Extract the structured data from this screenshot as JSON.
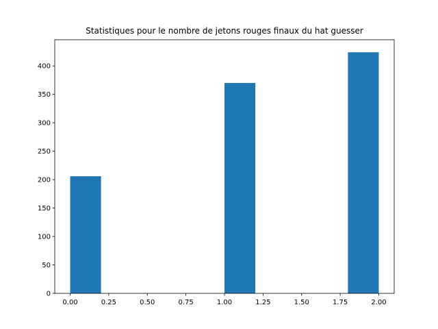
{
  "chart_data": {
    "type": "bar",
    "title": "Statistiques pour le nombre de jetons rouges finaux du hat guesser",
    "xlabel": "",
    "ylabel": "",
    "xlim": [
      -0.1,
      2.1
    ],
    "ylim": [
      0,
      446
    ],
    "x_ticks": [
      0.0,
      0.25,
      0.5,
      0.75,
      1.0,
      1.25,
      1.5,
      1.75,
      2.0
    ],
    "x_tick_labels": [
      "0.00",
      "0.25",
      "0.50",
      "0.75",
      "1.00",
      "1.25",
      "1.50",
      "1.75",
      "2.00"
    ],
    "y_ticks": [
      0,
      50,
      100,
      150,
      200,
      250,
      300,
      350,
      400
    ],
    "y_tick_labels": [
      "0",
      "50",
      "100",
      "150",
      "200",
      "250",
      "300",
      "350",
      "400"
    ],
    "bins": [
      {
        "x0": 0.0,
        "x1": 0.2,
        "value": 206
      },
      {
        "x0": 1.0,
        "x1": 1.2,
        "value": 370
      },
      {
        "x0": 1.8,
        "x1": 2.0,
        "value": 424
      }
    ],
    "bar_color": "#1f77b4",
    "grid": false,
    "legend": "none"
  }
}
